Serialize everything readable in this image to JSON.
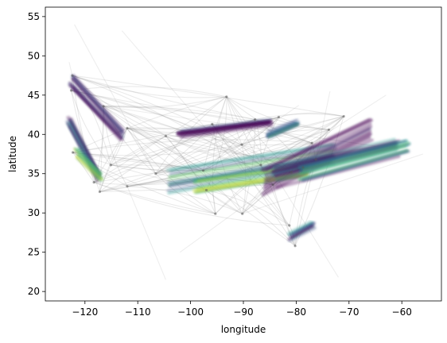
{
  "chart_data": {
    "type": "scatter",
    "title": "",
    "xlabel": "longitude",
    "ylabel": "latitude",
    "xlim": [
      -127.5,
      -52.5
    ],
    "ylim": [
      18.8,
      56.2
    ],
    "xticks": [
      -120,
      -110,
      -100,
      -90,
      -80,
      -70,
      -60
    ],
    "yticks": [
      20,
      25,
      30,
      35,
      40,
      45,
      50,
      55
    ],
    "xtick_labels": [
      "−120",
      "−110",
      "−100",
      "−90",
      "−80",
      "−70",
      "−60"
    ],
    "ytick_labels": [
      "20",
      "25",
      "30",
      "35",
      "40",
      "45",
      "50",
      "55"
    ],
    "grid": false,
    "legend": "none",
    "colormap": [
      "#440154",
      "#3b528b",
      "#21918c",
      "#5ec962",
      "#fde725"
    ],
    "trajectory_color": "#8a8a8a",
    "hubs": [
      [
        -122.4,
        47.5
      ],
      [
        -122.3,
        37.7
      ],
      [
        -118.3,
        33.9
      ],
      [
        -117.2,
        32.7
      ],
      [
        -112.0,
        40.8
      ],
      [
        -112.0,
        33.4
      ],
      [
        -104.7,
        39.8
      ],
      [
        -106.6,
        35.0
      ],
      [
        -97.0,
        32.9
      ],
      [
        -95.3,
        29.9
      ],
      [
        -90.2,
        29.9
      ],
      [
        -87.8,
        41.9
      ],
      [
        -84.4,
        33.6
      ],
      [
        -80.2,
        25.8
      ],
      [
        -81.3,
        28.4
      ],
      [
        -73.8,
        40.6
      ],
      [
        -71.0,
        42.3
      ],
      [
        -77.0,
        38.9
      ],
      [
        -80.9,
        35.2
      ],
      [
        -93.2,
        44.8
      ],
      [
        -97.6,
        35.4
      ],
      [
        -90.3,
        38.7
      ],
      [
        -86.7,
        36.1
      ],
      [
        -83.3,
        42.2
      ],
      [
        -115.1,
        36.1
      ],
      [
        -122.6,
        45.6
      ],
      [
        -116.5,
        43.6
      ],
      [
        -95.9,
        41.3
      ],
      [
        -76.3,
        36.8
      ],
      [
        -78.7,
        35.8
      ]
    ],
    "stray_points": [
      [
        -123.0,
        49.2
      ],
      [
        -122.0,
        54.0
      ],
      [
        -113.0,
        53.2
      ],
      [
        -79.5,
        43.7
      ],
      [
        -73.6,
        45.5
      ],
      [
        -104.7,
        21.5
      ],
      [
        -102.0,
        25.0
      ],
      [
        -72.0,
        21.8
      ],
      [
        -65.0,
        38.5
      ],
      [
        -60.0,
        39.0
      ],
      [
        -56.0,
        37.5
      ],
      [
        -63.0,
        45.0
      ]
    ],
    "dense_bands": [
      {
        "x": [
          -122.5,
          -113.0
        ],
        "y": [
          46.8,
          40.0
        ],
        "w": 1.0,
        "tone": 0
      },
      {
        "x": [
          -123.0,
          -117.5
        ],
        "y": [
          41.5,
          34.5
        ],
        "w": 0.8,
        "tone": 1
      },
      {
        "x": [
          -121.5,
          -117.0
        ],
        "y": [
          37.5,
          34.5
        ],
        "w": 0.7,
        "tone": 3
      },
      {
        "x": [
          -104.0,
          -73.0
        ],
        "y": [
          34.0,
          37.5
        ],
        "w": 1.6,
        "tone": 2
      },
      {
        "x": [
          -99.0,
          -78.0
        ],
        "y": [
          33.5,
          35.5
        ],
        "w": 1.0,
        "tone": 3
      },
      {
        "x": [
          -86.0,
          -66.0
        ],
        "y": [
          33.8,
          40.5
        ],
        "w": 1.8,
        "tone": 0
      },
      {
        "x": [
          -84.0,
          -61.0
        ],
        "y": [
          34.5,
          38.2
        ],
        "w": 1.4,
        "tone": 1
      },
      {
        "x": [
          -79.0,
          -59.0
        ],
        "y": [
          35.0,
          38.5
        ],
        "w": 1.0,
        "tone": 2
      },
      {
        "x": [
          -102.0,
          -85.0
        ],
        "y": [
          40.0,
          41.5
        ],
        "w": 0.6,
        "tone": 0
      },
      {
        "x": [
          -85.0,
          -80.0
        ],
        "y": [
          40.0,
          41.5
        ],
        "w": 0.5,
        "tone": 2
      },
      {
        "x": [
          -81.0,
          -77.0
        ],
        "y": [
          27.0,
          28.5
        ],
        "w": 0.5,
        "tone": 1
      }
    ]
  }
}
